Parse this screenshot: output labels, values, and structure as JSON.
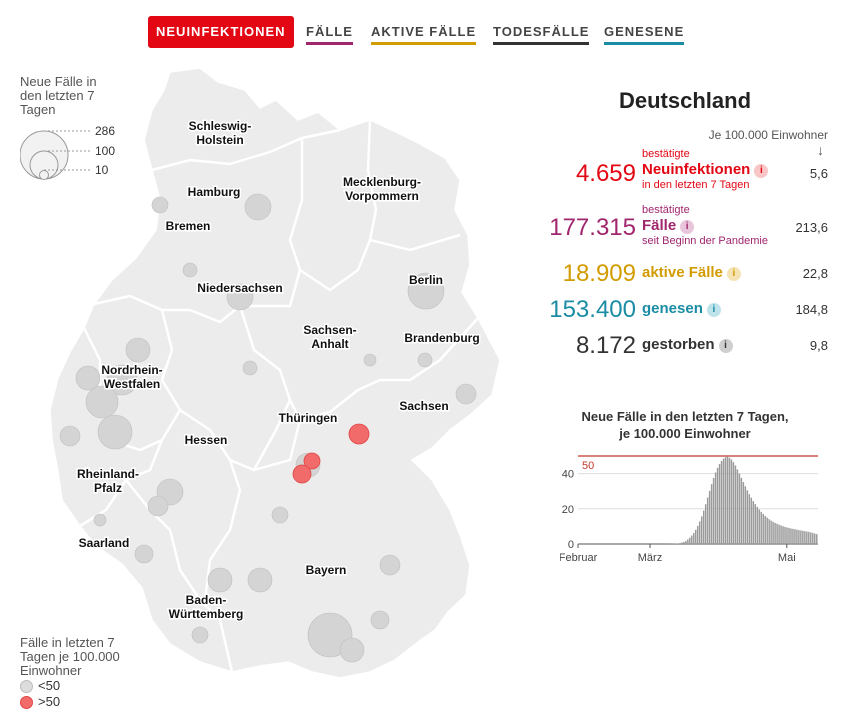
{
  "tabs": [
    {
      "label": "NEUINFEKTIONEN",
      "color": "#e30613",
      "active": true
    },
    {
      "label": "FÄLLE",
      "color": "#a0266e",
      "active": false
    },
    {
      "label": "AKTIVE FÄLLE",
      "color": "#d29b00",
      "active": false
    },
    {
      "label": "TODESFÄLLE",
      "color": "#333333",
      "active": false
    },
    {
      "label": "GENESENE",
      "color": "#1a8ca3",
      "active": false
    }
  ],
  "size_legend": {
    "title": "Neue Fälle in\nden letzten 7\nTagen",
    "values": [
      "286",
      "100",
      "10"
    ]
  },
  "color_legend": {
    "title": "Fälle in letzten 7\nTagen je 100.000\nEinwohner",
    "items": [
      {
        "label": "<50",
        "color": "#dcdcdc"
      },
      {
        "label": ">50",
        "color": "#f26b6b"
      }
    ]
  },
  "map_labels": [
    "Schleswig-\nHolstein",
    "Hamburg",
    "Mecklenburg-\nVorpommern",
    "Bremen",
    "Niedersachsen",
    "Berlin",
    "Sachsen-\nAnhalt",
    "Brandenburg",
    "Nordrhein-\nWestfalen",
    "Thüringen",
    "Sachsen",
    "Hessen",
    "Rheinland-\nPfalz",
    "Saarland",
    "Bayern",
    "Baden-\nWürttemberg"
  ],
  "panel": {
    "title": "Deutschland",
    "per100k_label": "Je 100.000 Einwohner",
    "arrow": "↓",
    "stats": [
      {
        "value": "4.659",
        "pre": "bestätigte",
        "main": "Neuinfektionen",
        "post": "in den letzten 7 Tagen",
        "rate": "5,6",
        "color": "#e30613"
      },
      {
        "value": "177.315",
        "pre": "bestätigte",
        "main": "Fälle",
        "post": "seit Beginn der Pandemie",
        "rate": "213,6",
        "color": "#a0266e"
      },
      {
        "value": "18.909",
        "pre": "",
        "main": "aktive Fälle",
        "post": "",
        "rate": "22,8",
        "color": "#d29b00"
      },
      {
        "value": "153.400",
        "pre": "",
        "main": "genesen",
        "post": "",
        "rate": "184,8",
        "color": "#1a8ca3"
      },
      {
        "value": "8.172",
        "pre": "",
        "main": "gestorben",
        "post": "",
        "rate": "9,8",
        "color": "#333333"
      }
    ]
  },
  "chart_data": {
    "type": "bar",
    "title": "Neue Fälle in den letzten 7 Tagen,\nje 100.000 Einwohner",
    "xticks": [
      "Februar",
      "März",
      "Mai"
    ],
    "yticks": [
      0,
      20,
      40
    ],
    "ylim": [
      0,
      50
    ],
    "threshold": {
      "value": 50,
      "label": "50",
      "color": "#c0392b"
    },
    "values": [
      0,
      0,
      0,
      0,
      0,
      0,
      0,
      0,
      0,
      0,
      0,
      0,
      0,
      0,
      0,
      0,
      0,
      0,
      0,
      0,
      0,
      0,
      0,
      0,
      0,
      0,
      0,
      0,
      0,
      0,
      0,
      0,
      0,
      0,
      0,
      0,
      0,
      0,
      0,
      0,
      0,
      0,
      0.01,
      0.02,
      0.03,
      0.05,
      0.07,
      0.1,
      0.15,
      0.2,
      0.3,
      0.5,
      0.8,
      1.2,
      1.8,
      2.6,
      3.6,
      4.8,
      6.3,
      8.1,
      10.3,
      12.8,
      15.7,
      19,
      22.6,
      26.4,
      30.2,
      34,
      37.5,
      40.6,
      43.3,
      45.5,
      47.2,
      48.5,
      49.3,
      49.6,
      49,
      48,
      46.5,
      44.6,
      42.4,
      40,
      37.6,
      35.2,
      32.8,
      30.5,
      28.3,
      26.3,
      24.4,
      22.7,
      21.1,
      19.6,
      18.3,
      17.1,
      16,
      15,
      14.1,
      13.3,
      12.6,
      12,
      11.5,
      11,
      10.5,
      10.1,
      9.7,
      9.4,
      9.1,
      8.8,
      8.6,
      8.4,
      8.1,
      7.9,
      7.7,
      7.5,
      7.3,
      7.1,
      6.9,
      6.6,
      6.3,
      5.9,
      5.6
    ]
  }
}
